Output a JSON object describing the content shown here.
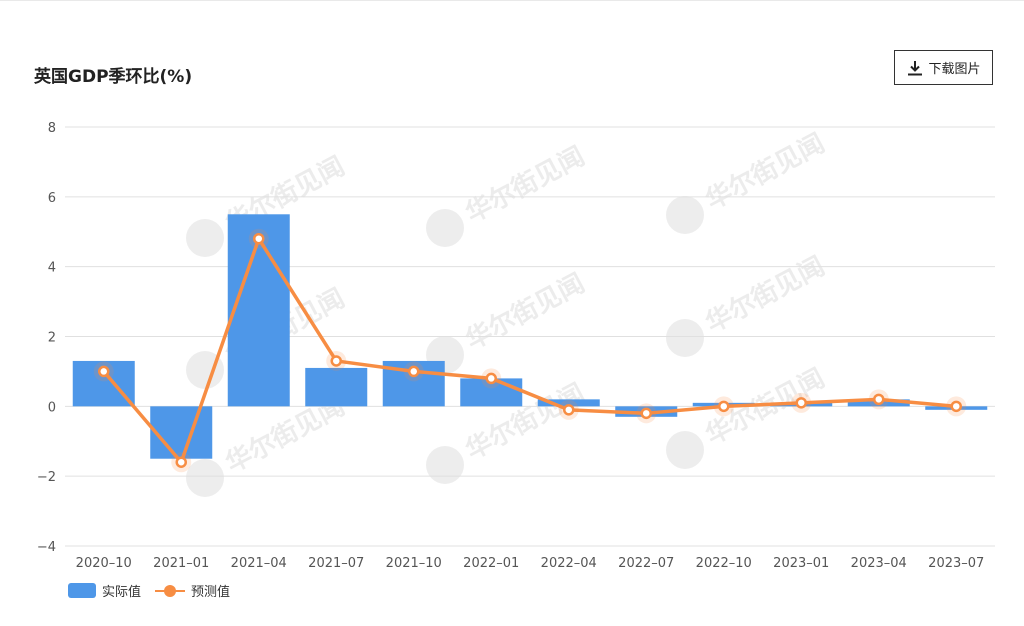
{
  "title": "英国GDP季环比(%)",
  "toolbar": {
    "download_label": "下载图片",
    "download_icon": "download-icon"
  },
  "watermark_text": "华尔街见闻",
  "colors": {
    "bar": "#4e97e8",
    "line": "#f78d43",
    "grid": "#e0e0e0",
    "axis_text": "#555555"
  },
  "chart_data": {
    "type": "bar",
    "categories": [
      "2020-10",
      "2021-01",
      "2021-04",
      "2021-07",
      "2021-10",
      "2022-01",
      "2022-04",
      "2022-07",
      "2022-10",
      "2023-01",
      "2023-04",
      "2023-07"
    ],
    "series": [
      {
        "name": "实际值",
        "type": "bar",
        "values": [
          1.3,
          -1.5,
          5.5,
          1.1,
          1.3,
          0.8,
          0.2,
          -0.3,
          0.1,
          0.1,
          0.2,
          -0.1
        ]
      },
      {
        "name": "预测值",
        "type": "line",
        "values": [
          1.0,
          -1.6,
          4.8,
          1.3,
          1.0,
          0.8,
          -0.1,
          -0.2,
          0.0,
          0.1,
          0.2,
          0.0
        ]
      }
    ],
    "ylim": [
      -4,
      8
    ],
    "yticks": [
      -4,
      -2,
      0,
      2,
      4,
      6,
      8
    ],
    "grid": true,
    "legend_position": "bottom-left"
  }
}
